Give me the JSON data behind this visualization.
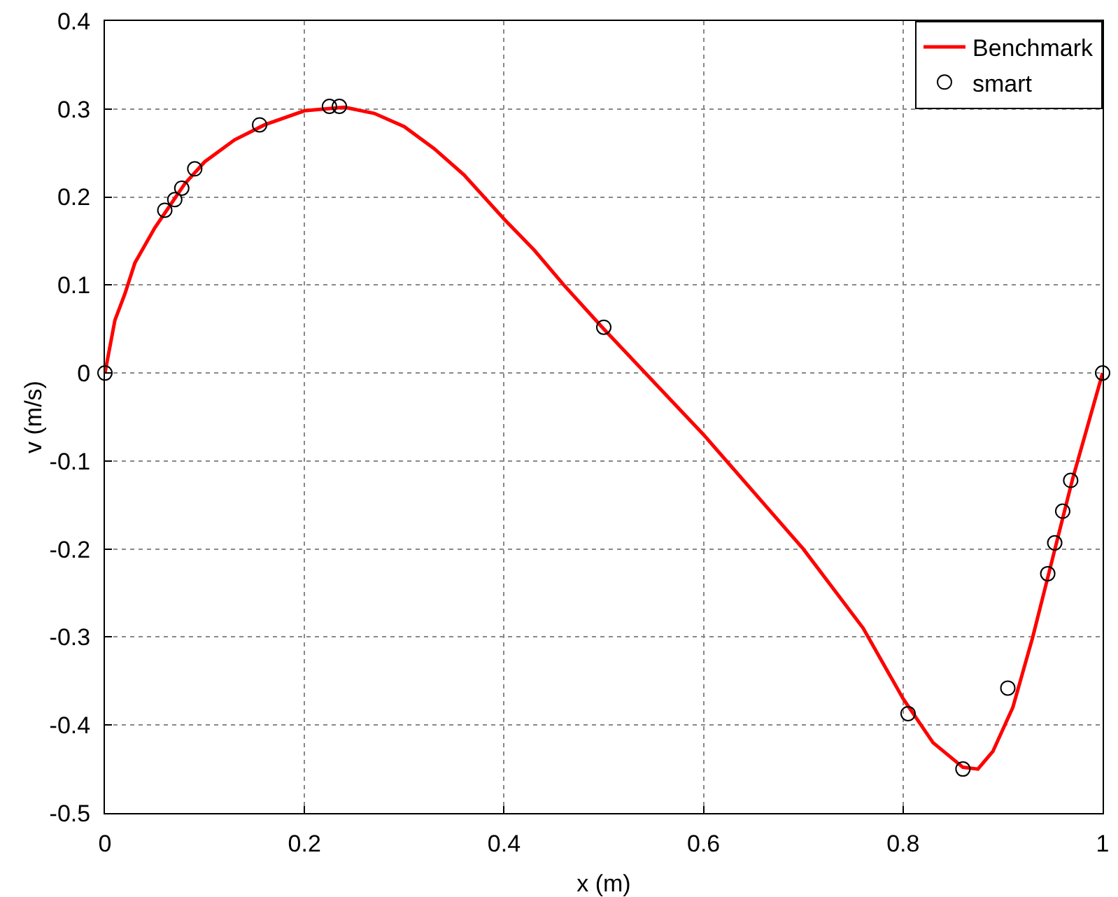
{
  "chart_data": {
    "type": "line",
    "xlabel": "x (m)",
    "ylabel": "v (m/s)",
    "xlim": [
      0,
      1
    ],
    "ylim": [
      -0.5,
      0.4
    ],
    "xticks": [
      0,
      0.2,
      0.4,
      0.6,
      0.8,
      1
    ],
    "yticks": [
      -0.5,
      -0.4,
      -0.3,
      -0.2,
      -0.1,
      0,
      0.1,
      0.2,
      0.3,
      0.4
    ],
    "grid": true,
    "legend": "top right",
    "series": [
      {
        "name": "Benchmark",
        "color": "#ff0000",
        "marker": "none",
        "line_style": "solid",
        "x": [
          0,
          0.01,
          0.02,
          0.03,
          0.05,
          0.08,
          0.1,
          0.13,
          0.16,
          0.2,
          0.24,
          0.27,
          0.3,
          0.33,
          0.36,
          0.4,
          0.43,
          0.46,
          0.5,
          0.55,
          0.6,
          0.65,
          0.7,
          0.73,
          0.76,
          0.8,
          0.83,
          0.86,
          0.875,
          0.89,
          0.91,
          0.93,
          0.95,
          0.97,
          0.985,
          1
        ],
        "values": [
          0,
          0.06,
          0.09,
          0.125,
          0.165,
          0.215,
          0.24,
          0.265,
          0.282,
          0.298,
          0.302,
          0.295,
          0.28,
          0.255,
          0.225,
          0.175,
          0.14,
          0.1,
          0.05,
          -0.01,
          -0.07,
          -0.135,
          -0.2,
          -0.245,
          -0.29,
          -0.37,
          -0.42,
          -0.448,
          -0.45,
          -0.43,
          -0.38,
          -0.3,
          -0.21,
          -0.12,
          -0.06,
          0
        ]
      },
      {
        "name": "smart",
        "type": "scatter",
        "color": "#000000",
        "marker": "circle",
        "x": [
          0,
          0.06,
          0.07,
          0.077,
          0.09,
          0.155,
          0.225,
          0.235,
          0.5,
          0.805,
          0.86,
          0.905,
          0.945,
          0.952,
          0.96,
          0.968,
          1
        ],
        "values": [
          0,
          0.185,
          0.197,
          0.21,
          0.232,
          0.282,
          0.303,
          0.303,
          0.052,
          -0.387,
          -0.45,
          -0.358,
          -0.228,
          -0.193,
          -0.157,
          -0.122,
          0
        ]
      }
    ]
  }
}
